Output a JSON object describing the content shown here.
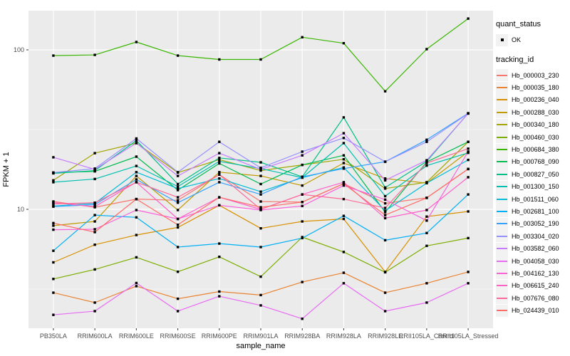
{
  "figure": {
    "background": "#FFFFFF",
    "panel_background": "#EBEBEB",
    "grid_color": "#FFFFFF",
    "tick_color": "#333333",
    "tick_label_color": "#4D4D4D",
    "axis_title_color": "#000000"
  },
  "axes": {
    "x_title": "sample_name",
    "y_title": "FPKM + 1",
    "y_tick_labels": [
      "100",
      "10"
    ]
  },
  "legend": {
    "quant_status": {
      "title": "quant_status",
      "items": [
        {
          "label": "OK",
          "marker": "black-square"
        }
      ]
    },
    "tracking_id": {
      "title": "tracking_id"
    }
  },
  "chart_data": {
    "type": "line",
    "title": "",
    "xlabel": "sample_name",
    "ylabel": "FPKM + 1",
    "y_scale": "log10",
    "ylim": [
      1.8,
      178
    ],
    "y_major_ticks": [
      10,
      100
    ],
    "y_minor_ticks": [
      3.162,
      31.623
    ],
    "grid": true,
    "legend_position": "right",
    "marker": {
      "shape": "square",
      "color": "#000000",
      "size": 3.4
    },
    "categories": [
      "PB350LA",
      "RRIM600LA",
      "RRIM600LE",
      "RRIM600SE",
      "RRIM600PE",
      "RRIM901LA",
      "RRIM928BA",
      "RRIM928LA",
      "RRIM928LE",
      "RRII105LA_Control",
      "RRII105LA_Stressed"
    ],
    "series": [
      {
        "name": "Hb_000003_230",
        "color": "#F8766D",
        "values": [
          11.2,
          10.3,
          11.6,
          11.4,
          16.5,
          11.2,
          11.1,
          14.5,
          10.9,
          11.8,
          17.9
        ]
      },
      {
        "name": "Hb_000035_180",
        "color": "#EA8331",
        "values": [
          3.0,
          2.6,
          3.3,
          2.75,
          3.05,
          2.9,
          3.5,
          4.0,
          3.0,
          3.44,
          4.05
        ]
      },
      {
        "name": "Hb_000236_040",
        "color": "#D89000",
        "values": [
          4.65,
          6.0,
          6.9,
          7.7,
          10.6,
          7.6,
          8.4,
          8.7,
          4.05,
          9.0,
          9.7
        ]
      },
      {
        "name": "Hb_000288_030",
        "color": "#C09B00",
        "values": [
          7.9,
          8.4,
          16.2,
          9.9,
          17.1,
          16.2,
          14.1,
          19.5,
          15.6,
          14.6,
          23.0
        ]
      },
      {
        "name": "Hb_000340_180",
        "color": "#A3A500",
        "values": [
          15.2,
          22.5,
          26.0,
          17.0,
          20.5,
          17.5,
          19.0,
          20.6,
          13.5,
          14.8,
          26.5
        ]
      },
      {
        "name": "Hb_000460_030",
        "color": "#7CAE00",
        "values": [
          3.66,
          4.2,
          5.0,
          4.06,
          5.04,
          3.78,
          6.7,
          5.4,
          4.03,
          5.9,
          6.6
        ]
      },
      {
        "name": "Hb_000684_380",
        "color": "#39B600",
        "values": [
          92,
          93,
          112,
          92,
          87,
          87,
          120,
          110,
          55,
          101,
          157
        ]
      },
      {
        "name": "Hb_000768_090",
        "color": "#00BB4E",
        "values": [
          17.0,
          17.3,
          21.4,
          13.2,
          19.4,
          14.4,
          19.0,
          21.8,
          9.6,
          19.8,
          26.5
        ]
      },
      {
        "name": "Hb_000827_050",
        "color": "#00C087",
        "values": [
          16.8,
          17.5,
          27.0,
          14.4,
          21.0,
          19.7,
          16.0,
          37.7,
          13.7,
          20.0,
          40.0
        ]
      },
      {
        "name": "Hb_001300_150",
        "color": "#00C0AF",
        "values": [
          14.8,
          15.5,
          18.7,
          13.9,
          20.0,
          18.0,
          15.8,
          26.0,
          12.1,
          18.8,
          22.6
        ]
      },
      {
        "name": "Hb_001511_060",
        "color": "#00BCD8",
        "values": [
          10.5,
          10.9,
          17.1,
          13.5,
          15.6,
          12.9,
          15.8,
          18.3,
          9.8,
          14.6,
          20.4
        ]
      },
      {
        "name": "Hb_002681_100",
        "color": "#00B0F6",
        "values": [
          5.5,
          9.2,
          8.9,
          5.8,
          6.1,
          5.8,
          6.6,
          9.1,
          6.4,
          7.1,
          12.4
        ]
      },
      {
        "name": "Hb_003052_190",
        "color": "#35A2FF",
        "values": [
          10.4,
          10.7,
          15.4,
          11.0,
          14.8,
          12.4,
          16.0,
          18.0,
          19.9,
          27.3,
          40.0
        ]
      },
      {
        "name": "Hb_003304_020",
        "color": "#9590FF",
        "values": [
          17.0,
          18.0,
          27.8,
          17.1,
          26.5,
          18.2,
          23.0,
          28.0,
          19.9,
          26.5,
          39.9
        ]
      },
      {
        "name": "Hb_003582_060",
        "color": "#C77CFF",
        "values": [
          21.2,
          17.8,
          26.0,
          16.2,
          22.5,
          17.8,
          21.8,
          30.0,
          15.2,
          20.3,
          39.9
        ]
      },
      {
        "name": "Hb_004058_030",
        "color": "#E76BF3",
        "values": [
          2.18,
          2.3,
          3.45,
          2.3,
          2.85,
          2.5,
          2.06,
          3.44,
          2.3,
          2.6,
          3.44
        ]
      },
      {
        "name": "Hb_004162_130",
        "color": "#FA62DB",
        "values": [
          7.45,
          7.5,
          9.9,
          8.7,
          10.6,
          9.9,
          10.5,
          14.1,
          11.5,
          8.5,
          23.0
        ]
      },
      {
        "name": "Hb_006615_240",
        "color": "#FF61C9",
        "values": [
          11.0,
          10.4,
          14.8,
          8.7,
          11.9,
          10.0,
          12.4,
          14.8,
          8.8,
          9.9,
          15.9
        ]
      },
      {
        "name": "Hb_007676_080",
        "color": "#FF6A98",
        "values": [
          10.8,
          11.0,
          14.8,
          11.9,
          16.5,
          10.0,
          12.4,
          11.6,
          10.2,
          19.5,
          24.0
        ]
      },
      {
        "name": "Hb_024439_010",
        "color": "#FF6C67",
        "values": [
          8.2,
          7.2,
          11.6,
          8.0,
          11.9,
          10.3,
          11.1,
          14.5,
          9.2,
          11.8,
          17.9
        ]
      }
    ]
  }
}
